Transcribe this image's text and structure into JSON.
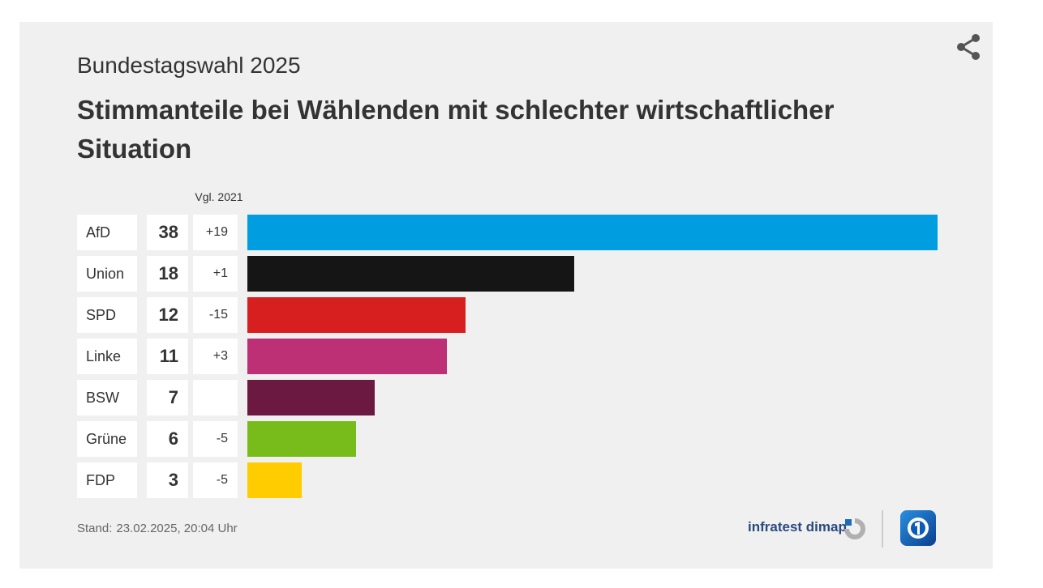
{
  "header": {
    "subtitle": "Bundestagswahl 2025",
    "title": "Stimmanteile bei Wählenden mit schlechter wirtschaftlicher Situation",
    "comparison_label": "Vgl. 2021"
  },
  "chart_data": {
    "type": "bar",
    "orientation": "horizontal",
    "title": "Stimmanteile bei Wählenden mit schlechter wirtschaftlicher Situation",
    "subtitle": "Bundestagswahl 2025",
    "comparison_label": "Vgl. 2021",
    "categories": [
      "AfD",
      "Union",
      "SPD",
      "Linke",
      "BSW",
      "Grüne",
      "FDP"
    ],
    "values": [
      38,
      18,
      12,
      11,
      7,
      6,
      3
    ],
    "diffs": [
      "+19",
      "+1",
      "-15",
      "+3",
      "",
      "-5",
      "-5"
    ],
    "colors": [
      "#009ee0",
      "#151515",
      "#d71f1f",
      "#be3075",
      "#6c1941",
      "#78bc1b",
      "#ffcc00"
    ],
    "xlim": [
      0,
      38
    ]
  },
  "footer": {
    "stand_label": "Stand:",
    "stand_value": "23.02.2025, 20:04 Uhr",
    "source": "infratest dimap"
  },
  "icons": {
    "share": "share-icon",
    "infratest_logo": "infratest-dimap-logo-icon",
    "broadcaster_logo": "tagesschau-logo-icon"
  }
}
